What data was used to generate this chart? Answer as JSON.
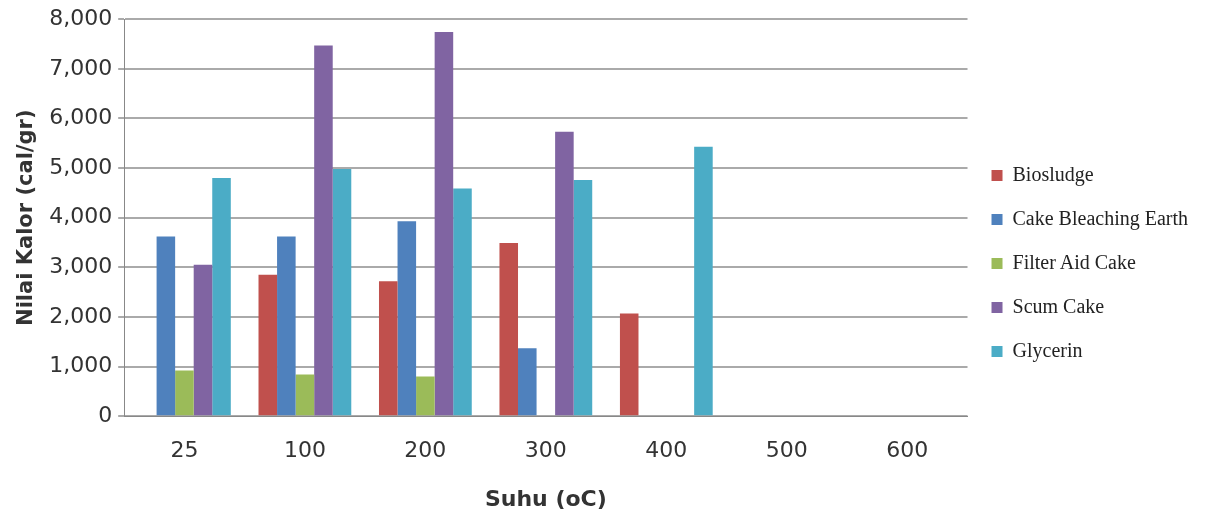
{
  "chart_data": {
    "type": "bar",
    "xlabel": "Suhu (oC)",
    "ylabel": "Nilai Kalor (cal/gr)",
    "categories": [
      "25",
      "100",
      "200",
      "300",
      "400",
      "500",
      "600"
    ],
    "series": [
      {
        "name": "Biosludge",
        "color": "#c0504d",
        "values": [
          null,
          2850,
          2720,
          3490,
          2070,
          null,
          null
        ]
      },
      {
        "name": "Cake Bleaching Earth",
        "color": "#4f81bd",
        "values": [
          3620,
          3620,
          3930,
          1370,
          null,
          null,
          null
        ]
      },
      {
        "name": "Filter Aid Cake",
        "color": "#9bbb59",
        "values": [
          920,
          840,
          800,
          null,
          null,
          null,
          null
        ]
      },
      {
        "name": "Scum Cake",
        "color": "#8064a2",
        "values": [
          3050,
          7470,
          7740,
          5730,
          null,
          null,
          null
        ]
      },
      {
        "name": "Glycerin",
        "color": "#4bacc6",
        "values": [
          4800,
          4980,
          4590,
          4760,
          5430,
          null,
          null
        ]
      }
    ],
    "ylim": [
      0,
      8000
    ],
    "yticks": [
      0,
      {
        "value": 1000,
        "label": "1,000"
      },
      {
        "value": 2000,
        "label": "2,000"
      },
      {
        "value": 3000,
        "label": "3,000"
      },
      {
        "value": 4000,
        "label": "4,000"
      },
      {
        "value": 5000,
        "label": "5,000"
      },
      {
        "value": 6000,
        "label": "6,000"
      },
      {
        "value": 7000,
        "label": "7,000"
      },
      {
        "value": 8000,
        "label": "8,000"
      }
    ],
    "grid": "y",
    "legend": "right"
  }
}
